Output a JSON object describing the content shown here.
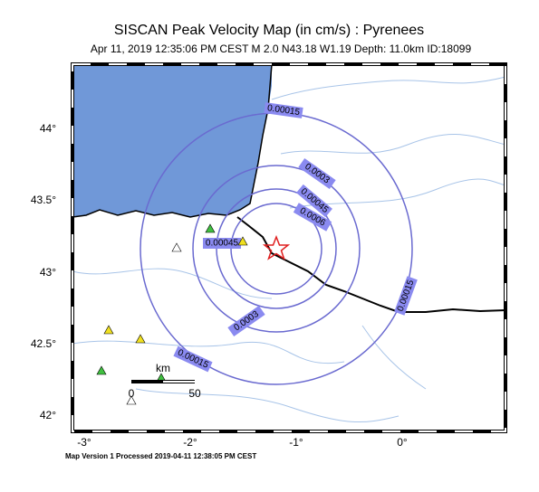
{
  "header": {
    "title": "SISCAN Peak Velocity Map (in cm/s) : Pyrenees",
    "subtitle": "Apr 11, 2019 12:35:06 PM CEST   M 2.0   N43.18 W1.19   Depth: 11.0km   ID:18099"
  },
  "map": {
    "lat_labels": [
      "44°",
      "43.5°",
      "43°",
      "42.5°",
      "42°"
    ],
    "lon_labels": [
      "-3°",
      "-2°",
      "-1°",
      "0°"
    ],
    "contour_labels": [
      "0.00015",
      "0.0003",
      "0.00045",
      "0.0006",
      "0.00045",
      "0.0003",
      "0.00015",
      "0.00015"
    ],
    "scale_bar": {
      "unit": "km",
      "start": "0",
      "end": "50"
    }
  },
  "footer": {
    "text": "Map Version 1 Processed 2019-04-11 12:38:05 PM CEST"
  }
}
